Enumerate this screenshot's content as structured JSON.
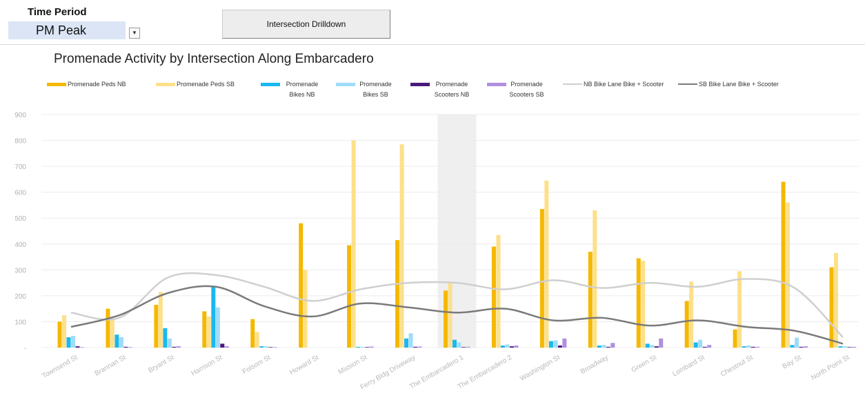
{
  "controls": {
    "time_period_label": "Time Period",
    "time_period_value": "PM Peak",
    "dropdown_icon": "chevron-down-icon",
    "drilldown_button": "Intersection Drilldown"
  },
  "chart_data": {
    "type": "bar",
    "title": "Promenade Activity by Intersection Along Embarcadero",
    "xlabel": "",
    "ylabel": "",
    "ylim": [
      0,
      900
    ],
    "yticks": [
      "-",
      "100",
      "200",
      "300",
      "400",
      "500",
      "600",
      "700",
      "800",
      "900"
    ],
    "grid": true,
    "legend_position": "top",
    "highlighted_category": "The Embarcadero 1",
    "categories": [
      "Townsend St",
      "Brannan St",
      "Bryant St",
      "Harrison St",
      "Folsom St",
      "Howard St",
      "Mission St",
      "Ferry Bldg Driveway",
      "The Embarcadero 1",
      "The Embarcadero 2",
      "Washington St",
      "Broadway",
      "Green St",
      "Lombard St",
      "Chestnut St",
      "Bay St",
      "North Point St"
    ],
    "series": [
      {
        "name": "Promenade Peds NB",
        "kind": "bar",
        "color": "#f5b800",
        "values": [
          100,
          150,
          165,
          140,
          110,
          480,
          395,
          415,
          220,
          390,
          535,
          370,
          345,
          180,
          70,
          640,
          310
        ]
      },
      {
        "name": "Promenade Peds SB",
        "kind": "bar",
        "color": "#fde08a",
        "values": [
          125,
          110,
          215,
          120,
          60,
          300,
          800,
          785,
          250,
          435,
          645,
          530,
          335,
          255,
          295,
          560,
          365
        ]
      },
      {
        "name": "Promenade Bikes NB",
        "kind": "bar",
        "color": "#1ab8f0",
        "values": [
          40,
          50,
          75,
          235,
          5,
          0,
          3,
          35,
          30,
          8,
          25,
          8,
          15,
          20,
          5,
          10,
          5
        ]
      },
      {
        "name": "Promenade Bikes SB",
        "kind": "bar",
        "color": "#9fdcf7",
        "values": [
          45,
          40,
          35,
          155,
          5,
          0,
          3,
          55,
          20,
          12,
          28,
          10,
          10,
          30,
          8,
          38,
          5
        ]
      },
      {
        "name": "Promenade Scooters NB",
        "kind": "bar",
        "color": "#4a1a7a",
        "values": [
          5,
          3,
          3,
          15,
          2,
          0,
          2,
          3,
          2,
          5,
          8,
          3,
          5,
          3,
          3,
          3,
          2
        ]
      },
      {
        "name": "Promenade Scooters SB",
        "kind": "bar",
        "color": "#b08ee0",
        "values": [
          2,
          2,
          5,
          5,
          2,
          0,
          4,
          4,
          3,
          8,
          35,
          18,
          35,
          10,
          3,
          5,
          3
        ]
      },
      {
        "name": "NB Bike Lane Bike + Scooter",
        "kind": "line",
        "color": "#cfcfcf",
        "values": [
          135,
          115,
          270,
          280,
          235,
          180,
          225,
          250,
          250,
          225,
          260,
          230,
          250,
          235,
          265,
          230,
          40
        ]
      },
      {
        "name": "SB Bike Lane Bike + Scooter",
        "kind": "line",
        "color": "#7a7a7a",
        "values": [
          80,
          125,
          210,
          235,
          160,
          120,
          170,
          155,
          135,
          150,
          105,
          115,
          85,
          105,
          80,
          65,
          15
        ]
      }
    ]
  }
}
